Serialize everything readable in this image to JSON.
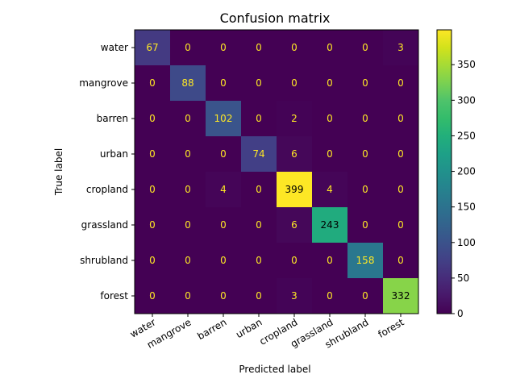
{
  "chart_data": {
    "type": "heatmap",
    "title": "Confusion matrix",
    "xlabel": "Predicted label",
    "ylabel": "True label",
    "x_categories": [
      "water",
      "mangrove",
      "barren",
      "urban",
      "cropland",
      "grassland",
      "shrubland",
      "forest"
    ],
    "y_categories": [
      "water",
      "mangrove",
      "barren",
      "urban",
      "cropland",
      "grassland",
      "shrubland",
      "forest"
    ],
    "matrix": [
      [
        67,
        0,
        0,
        0,
        0,
        0,
        0,
        3
      ],
      [
        0,
        88,
        0,
        0,
        0,
        0,
        0,
        0
      ],
      [
        0,
        0,
        102,
        0,
        2,
        0,
        0,
        0
      ],
      [
        0,
        0,
        0,
        74,
        6,
        0,
        0,
        0
      ],
      [
        0,
        0,
        4,
        0,
        399,
        4,
        0,
        0
      ],
      [
        0,
        0,
        0,
        0,
        6,
        243,
        0,
        0
      ],
      [
        0,
        0,
        0,
        0,
        0,
        0,
        158,
        0
      ],
      [
        0,
        0,
        0,
        0,
        3,
        0,
        0,
        332
      ]
    ],
    "colormap": "viridis",
    "value_range": [
      0,
      399
    ],
    "colorbar_ticks": [
      0,
      50,
      100,
      150,
      200,
      250,
      300,
      350
    ],
    "grid": false
  }
}
